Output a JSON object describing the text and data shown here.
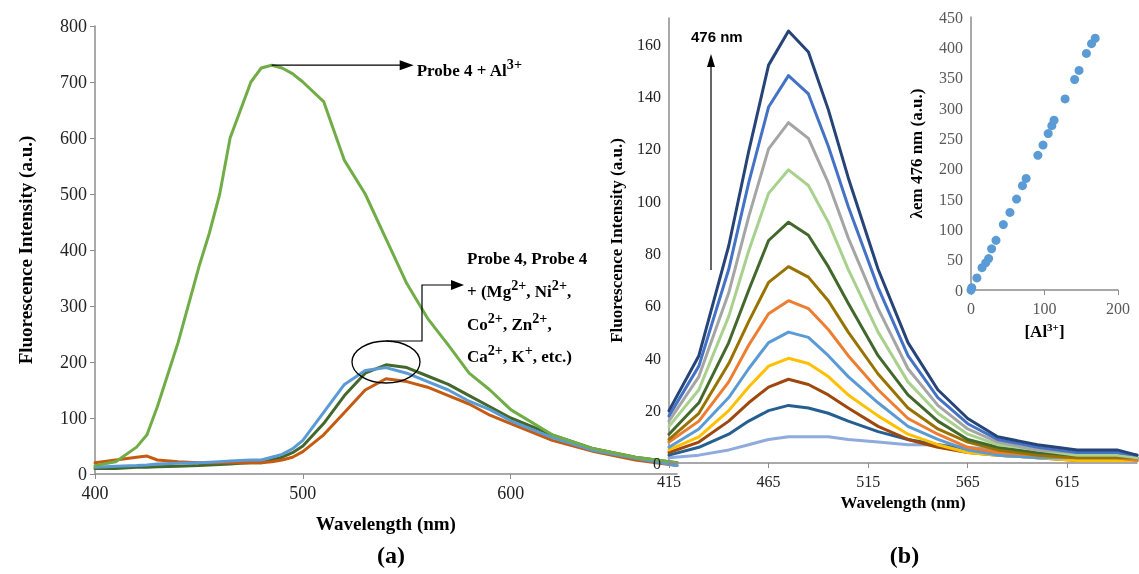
{
  "chart_data": [
    {
      "type": "line",
      "title": "(a)",
      "xlabel": "Wavelength (nm)",
      "ylabel": "Fluorescence Intensity (a.u.)",
      "marker": "none",
      "line_style": "solid",
      "xlim": [
        400,
        680
      ],
      "xticks": [
        400,
        500,
        600
      ],
      "ylim": [
        0,
        800
      ],
      "yticks": [
        0,
        100,
        200,
        300,
        400,
        500,
        600,
        700,
        800
      ],
      "x": [
        400,
        410,
        420,
        425,
        430,
        440,
        450,
        455,
        460,
        465,
        470,
        475,
        480,
        485,
        490,
        495,
        500,
        510,
        520,
        530,
        540,
        550,
        560,
        570,
        580,
        590,
        600,
        620,
        640,
        660,
        680
      ],
      "series": [
        {
          "color": "#43682b",
          "values": [
            10,
            10,
            12,
            12,
            13,
            14,
            15,
            16,
            17,
            18,
            19,
            20,
            20,
            25,
            30,
            38,
            50,
            90,
            140,
            180,
            195,
            190,
            175,
            160,
            140,
            120,
            100,
            70,
            45,
            30,
            20
          ]
        },
        {
          "color": "#c55a11",
          "values": [
            20,
            25,
            30,
            32,
            25,
            22,
            20,
            20,
            20,
            20,
            20,
            20,
            20,
            22,
            25,
            30,
            40,
            70,
            110,
            150,
            170,
            165,
            155,
            140,
            125,
            105,
            90,
            60,
            40,
            25,
            15
          ]
        },
        {
          "color": "#5b9bd5",
          "values": [
            12,
            14,
            15,
            16,
            18,
            19,
            20,
            21,
            22,
            23,
            24,
            25,
            25,
            30,
            35,
            45,
            60,
            110,
            160,
            185,
            190,
            180,
            165,
            150,
            130,
            115,
            95,
            65,
            42,
            28,
            15
          ]
        },
        {
          "color": "#70ad47",
          "values": [
            15,
            22,
            48,
            70,
            120,
            235,
            370,
            430,
            500,
            600,
            650,
            700,
            725,
            730,
            725,
            715,
            700,
            665,
            560,
            500,
            420,
            340,
            278,
            230,
            180,
            150,
            115,
            70,
            45,
            30,
            20
          ]
        }
      ],
      "annotations": [
        {
          "text": "Probe 4 + Al$^{3+}$",
          "x": 485,
          "y": 730
        },
        "Probe 4, Probe 4 + (Mg$^{2+}$, Ni$^{2+}$, Co$^{2+}$, Zn$^{2+}$, Ca$^{2+}$, K$^{+}$, etc.)"
      ]
    },
    {
      "type": "line",
      "title": "(b)",
      "xlabel": "Wavelength (nm)",
      "ylabel": "Fluorescence Intensity (a.u.)",
      "marker": "none",
      "line_style": "solid",
      "xlim": [
        415,
        650
      ],
      "xticks": [
        415,
        465,
        515,
        565,
        615
      ],
      "ylim": [
        0,
        170
      ],
      "yticks": [
        0,
        20,
        40,
        60,
        80,
        100,
        120,
        140,
        160
      ],
      "x": [
        415,
        430,
        445,
        455,
        465,
        475,
        485,
        495,
        505,
        520,
        535,
        550,
        565,
        580,
        600,
        620,
        640,
        650
      ],
      "series": [
        {
          "color": "#8faadc",
          "values": [
            2,
            3,
            5,
            7,
            9,
            10,
            10,
            10,
            9,
            8,
            7,
            7,
            6,
            5,
            4,
            3,
            2,
            2
          ]
        },
        {
          "color": "#255e91",
          "values": [
            3,
            6,
            11,
            16,
            20,
            22,
            21,
            19,
            16,
            12,
            9,
            7,
            5,
            4,
            3,
            2,
            2,
            1
          ]
        },
        {
          "color": "#9e480e",
          "values": [
            4,
            8,
            16,
            23,
            29,
            32,
            30,
            26,
            21,
            14,
            9,
            6,
            4,
            3,
            2,
            1,
            1,
            1
          ]
        },
        {
          "color": "#ffc000",
          "values": [
            5,
            10,
            20,
            29,
            37,
            40,
            38,
            33,
            26,
            18,
            11,
            7,
            4,
            3,
            2,
            1,
            1,
            1
          ]
        },
        {
          "color": "#5b9bd5",
          "values": [
            6,
            13,
            25,
            36,
            46,
            50,
            48,
            41,
            33,
            23,
            14,
            9,
            5,
            3,
            2,
            2,
            2,
            1
          ]
        },
        {
          "color": "#ed7d31",
          "values": [
            8,
            16,
            31,
            45,
            57,
            62,
            59,
            51,
            41,
            28,
            17,
            11,
            6,
            4,
            3,
            2,
            2,
            1
          ]
        },
        {
          "color": "#997300",
          "values": [
            9,
            19,
            38,
            54,
            69,
            75,
            71,
            62,
            50,
            34,
            21,
            13,
            8,
            5,
            3,
            2,
            2,
            2
          ]
        },
        {
          "color": "#43682b",
          "values": [
            11,
            23,
            46,
            66,
            85,
            92,
            87,
            75,
            61,
            41,
            26,
            16,
            9,
            6,
            4,
            3,
            3,
            2
          ]
        },
        {
          "color": "#a9d18e",
          "values": [
            14,
            28,
            56,
            81,
            103,
            112,
            106,
            92,
            74,
            50,
            31,
            19,
            11,
            7,
            5,
            3,
            3,
            2
          ]
        },
        {
          "color": "#a5a5a5",
          "values": [
            16,
            33,
            65,
            94,
            120,
            130,
            124,
            107,
            86,
            59,
            36,
            22,
            13,
            8,
            5,
            4,
            4,
            3
          ]
        },
        {
          "color": "#4472c4",
          "values": [
            18,
            37,
            74,
            107,
            136,
            148,
            141,
            121,
            98,
            67,
            41,
            25,
            15,
            9,
            6,
            4,
            4,
            3
          ]
        },
        {
          "color": "#264478",
          "values": [
            20,
            41,
            83,
            119,
            152,
            165,
            157,
            135,
            109,
            74,
            46,
            28,
            17,
            10,
            7,
            5,
            5,
            3
          ]
        }
      ],
      "annotations": [
        "476 nm"
      ]
    },
    {
      "type": "scatter",
      "xlabel": "[Al$^{3+}$]",
      "ylabel": "λem 476 nm (a.u.)",
      "marker": "circle",
      "color": "#5b9bd5",
      "xlim": [
        0,
        200
      ],
      "xticks": [
        0,
        100,
        200
      ],
      "ylim": [
        0,
        450
      ],
      "yticks": [
        0,
        50,
        100,
        150,
        200,
        250,
        300,
        350,
        400,
        450
      ],
      "x": [
        0,
        1,
        8,
        15,
        20,
        24,
        28,
        34,
        44,
        53,
        62,
        70,
        75,
        91,
        98,
        105,
        110,
        113,
        128,
        141,
        147,
        157,
        164,
        169
      ],
      "values": [
        0,
        4,
        20,
        37,
        45,
        52,
        68,
        82,
        108,
        128,
        150,
        172,
        184,
        222,
        239,
        258,
        271,
        280,
        315,
        347,
        362,
        390,
        406,
        415
      ]
    }
  ]
}
